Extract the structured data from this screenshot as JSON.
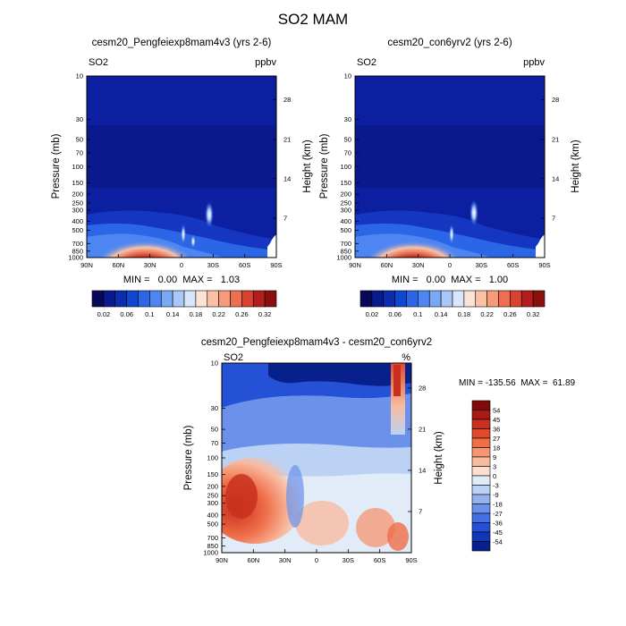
{
  "figure": {
    "title": "SO2 MAM"
  },
  "chart_data": [
    {
      "type": "heatmap",
      "title": "cesm20_Pengfeiexp8mam4v3 (yrs 2-6)",
      "variable": "SO2",
      "units": "ppbv",
      "xlabel": "",
      "ylabel": "Pressure (mb)",
      "y2label": "Height (km)",
      "x_ticks": [
        "90N",
        "60N",
        "30N",
        "0",
        "30S",
        "60S",
        "90S"
      ],
      "y_ticks": [
        "10",
        "30",
        "50",
        "70",
        "100",
        "150",
        "200",
        "250",
        "300",
        "400",
        "500",
        "700",
        "850",
        "1000"
      ],
      "y2_ticks": [
        "28",
        "21",
        "14",
        "7"
      ],
      "y_scale": "log",
      "ylim": [
        1000,
        10
      ],
      "stats": "MIN =   0.00  MAX =   1.03",
      "colorbar_labels": [
        "0.02",
        "0.06",
        "0.1",
        "0.14",
        "0.18",
        "0.22",
        "0.26",
        "0.32"
      ],
      "colors": [
        "#08085a",
        "#0a1a8c",
        "#0b2eb0",
        "#0f48cf",
        "#2a66e6",
        "#4d86f2",
        "#79a8f5",
        "#a9c8f8",
        "#d7e6fb",
        "#fbe3d6",
        "#fbc1a6",
        "#f79a7a",
        "#ee6e52",
        "#d7432f",
        "#b31e1c",
        "#8a0f0f"
      ],
      "values": [
        [
          0.02,
          0.32
        ]
      ]
    },
    {
      "type": "heatmap",
      "title": "cesm20_con6yrv2 (yrs 2-6)",
      "variable": "SO2",
      "units": "ppbv",
      "xlabel": "",
      "ylabel": "Pressure (mb)",
      "y2label": "Height (km)",
      "x_ticks": [
        "90N",
        "60N",
        "30N",
        "0",
        "30S",
        "60S",
        "90S"
      ],
      "y_ticks": [
        "10",
        "30",
        "50",
        "70",
        "100",
        "150",
        "200",
        "250",
        "300",
        "400",
        "500",
        "700",
        "850",
        "1000"
      ],
      "y2_ticks": [
        "28",
        "21",
        "14",
        "7"
      ],
      "y_scale": "log",
      "ylim": [
        1000,
        10
      ],
      "stats": "MIN =   0.00  MAX =   1.00",
      "colorbar_labels": [
        "0.02",
        "0.06",
        "0.1",
        "0.14",
        "0.18",
        "0.22",
        "0.26",
        "0.32"
      ],
      "colors": [
        "#08085a",
        "#0a1a8c",
        "#0b2eb0",
        "#0f48cf",
        "#2a66e6",
        "#4d86f2",
        "#79a8f5",
        "#a9c8f8",
        "#d7e6fb",
        "#fbe3d6",
        "#fbc1a6",
        "#f79a7a",
        "#ee6e52",
        "#d7432f",
        "#b31e1c",
        "#8a0f0f"
      ],
      "values": [
        [
          0.02,
          0.32
        ]
      ]
    },
    {
      "type": "heatmap",
      "title": "cesm20_Pengfeiexp8mam4v3 - cesm20_con6yrv2",
      "variable": "SO2",
      "units": "%",
      "xlabel": "",
      "ylabel": "Pressure (mb)",
      "y2label": "Height (km)",
      "x_ticks": [
        "90N",
        "60N",
        "30N",
        "0",
        "30S",
        "60S",
        "90S"
      ],
      "y_ticks": [
        "10",
        "30",
        "50",
        "70",
        "100",
        "150",
        "200",
        "250",
        "300",
        "400",
        "500",
        "700",
        "850",
        "1000"
      ],
      "y2_ticks": [
        "28",
        "21",
        "14",
        "7"
      ],
      "y_scale": "log",
      "ylim": [
        1000,
        10
      ],
      "stats": "MIN = -135.56  MAX =  61.89",
      "colorbar_labels": [
        "54",
        "45",
        "36",
        "27",
        "18",
        "9",
        "3",
        "0",
        "-3",
        "-9",
        "-18",
        "-27",
        "-36",
        "-45",
        "-54"
      ],
      "colors": [
        "#7f0a0a",
        "#a81a14",
        "#c9301f",
        "#e04a2a",
        "#ef6e48",
        "#f59572",
        "#f8bba0",
        "#fbe0cf",
        "#e2ecf8",
        "#bcd2f4",
        "#93b2ee",
        "#6b91ea",
        "#4470e4",
        "#2451d6",
        "#1136b6",
        "#08208c"
      ],
      "values": [
        [
          -54,
          54
        ]
      ]
    }
  ]
}
